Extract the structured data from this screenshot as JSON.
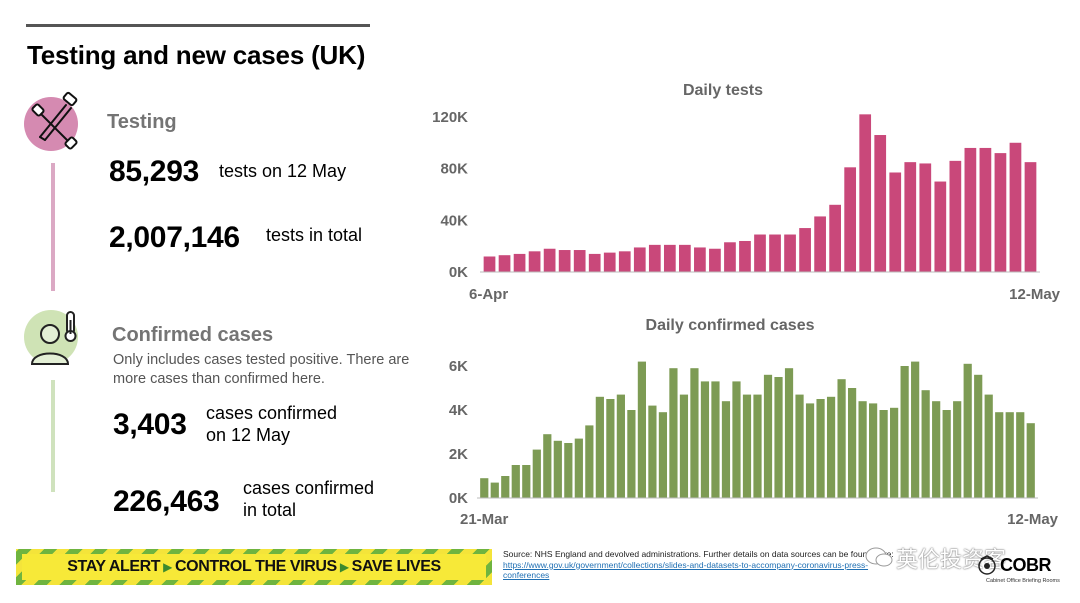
{
  "page": {
    "title": "Testing and new cases (UK)"
  },
  "testing": {
    "heading": "Testing",
    "daily_value": "85,293",
    "daily_label": "tests on 12 May",
    "total_value": "2,007,146",
    "total_label": "tests in total",
    "icon": "test-swab-icon",
    "color": "#d4809f"
  },
  "cases": {
    "heading": "Confirmed cases",
    "note": "Only includes cases tested positive. There are more cases than confirmed here.",
    "daily_value": "3,403",
    "daily_label_line1": "cases confirmed",
    "daily_label_line2": "on 12 May",
    "total_value": "226,463",
    "total_label_line1": "cases confirmed",
    "total_label_line2": "in total",
    "icon": "person-thermometer-icon",
    "color": "#cfe2bd"
  },
  "chart_data": [
    {
      "type": "bar",
      "title": "Daily tests",
      "color": "#c9487a",
      "x_start_label": "6-Apr",
      "x_end_label": "12-May",
      "y_ticks": [
        "0K",
        "40K",
        "80K",
        "120K"
      ],
      "ylim": [
        0,
        130000
      ],
      "values": [
        12000,
        13000,
        14000,
        16000,
        18000,
        17000,
        17000,
        14000,
        15000,
        16000,
        19000,
        21000,
        21000,
        21000,
        19000,
        18000,
        23000,
        24000,
        29000,
        29000,
        29000,
        34000,
        43000,
        52000,
        81000,
        122000,
        106000,
        77000,
        85000,
        84000,
        70000,
        86000,
        96000,
        96000,
        92000,
        100000,
        85000
      ]
    },
    {
      "type": "bar",
      "title": "Daily confirmed cases",
      "color": "#7d9b54",
      "x_start_label": "21-Mar",
      "x_end_label": "12-May",
      "y_ticks": [
        "0K",
        "2K",
        "4K",
        "6K"
      ],
      "ylim": [
        0,
        7000
      ],
      "values": [
        900,
        700,
        1000,
        1500,
        1500,
        2200,
        2900,
        2600,
        2500,
        2700,
        3300,
        4600,
        4500,
        4700,
        4000,
        6200,
        4200,
        3900,
        5900,
        4700,
        5900,
        5300,
        5300,
        4400,
        5300,
        4700,
        4700,
        5600,
        5500,
        5900,
        4700,
        4300,
        4500,
        4600,
        5400,
        5000,
        4400,
        4300,
        4000,
        4100,
        6000,
        6200,
        4900,
        4400,
        4000,
        4400,
        6100,
        5600,
        4700,
        3900,
        3900,
        3900,
        3400
      ]
    }
  ],
  "banner": {
    "part1": "STAY ALERT",
    "part2": "CONTROL THE VIRUS",
    "part3": "SAVE LIVES"
  },
  "source": {
    "text": "Source: NHS England and devolved administrations. Further details on data sources can be found here:",
    "link": "https://www.gov.uk/government/collections/slides-and-datasets-to-accompany-coronavirus-press-conferences"
  },
  "watermark": {
    "text": "英伦投资客"
  },
  "logo": {
    "name": "COBR",
    "subtitle": "Cabinet Office Briefing Rooms"
  }
}
